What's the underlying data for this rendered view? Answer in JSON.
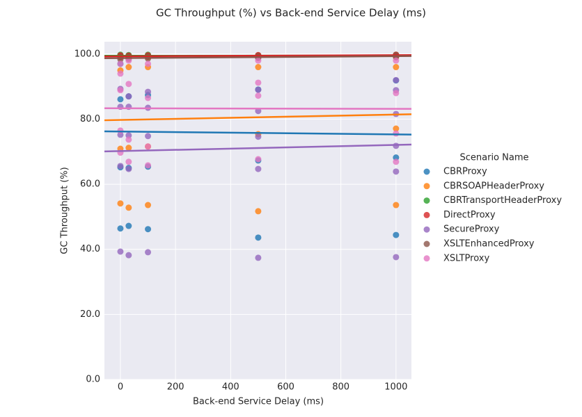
{
  "chart_data": {
    "type": "scatter",
    "title": "GC Throughput (%) vs Back-end Service Delay (ms)",
    "x_label": "Back-end Service Delay (ms)",
    "y_label": "GC Throughput (%)",
    "legend_title": "Scenario Name",
    "legend_position": "right",
    "grid": true,
    "regression": true,
    "xlim": [
      -58,
      1056
    ],
    "ylim": [
      0,
      103.8
    ],
    "xticks": [
      0,
      200,
      400,
      600,
      800,
      1000
    ],
    "yticks": [
      {
        "value": 0,
        "label": "0.0"
      },
      {
        "value": 20,
        "label": "20.0"
      },
      {
        "value": 40,
        "label": "40.0"
      },
      {
        "value": 60,
        "label": "60.0"
      },
      {
        "value": 80,
        "label": "80.0"
      },
      {
        "value": 100,
        "label": "100.0"
      }
    ],
    "series": [
      {
        "name": "CBRProxy",
        "color": "#1f77b4",
        "x": [
          0,
          0,
          0,
          0,
          0,
          30,
          30,
          30,
          30,
          100,
          100,
          100,
          100,
          500,
          500,
          500,
          500,
          1000,
          1000,
          1000,
          1000
        ],
        "values": [
          99.5,
          86.1,
          65.2,
          46.4,
          97,
          99.5,
          87.0,
          65.0,
          47.2,
          99.5,
          87.4,
          65.4,
          46.2,
          99.0,
          89.1,
          67.3,
          43.6,
          99.5,
          91.9,
          68.2,
          44.4
        ]
      },
      {
        "name": "CBRSOAPHeaderProxy",
        "color": "#ff7f0e",
        "x": [
          0,
          0,
          0,
          0,
          30,
          30,
          30,
          30,
          100,
          100,
          100,
          100,
          500,
          500,
          500,
          500,
          1000,
          1000,
          1000,
          1000
        ],
        "values": [
          99,
          95,
          70.9,
          54.1,
          99,
          96,
          71.2,
          52.8,
          99,
          96,
          71.6,
          53.6,
          99,
          96,
          75.4,
          51.7,
          99,
          96,
          77.1,
          53.6
        ]
      },
      {
        "name": "CBRTransportHeaderProxy",
        "color": "#2ca02c",
        "x": [
          0,
          0,
          30,
          30,
          100,
          100,
          500,
          500,
          1000,
          1000
        ],
        "values": [
          99.8,
          99.3,
          99.7,
          99.2,
          99.8,
          99.3,
          99.6,
          99.0,
          99.8,
          99.4
        ]
      },
      {
        "name": "DirectProxy",
        "color": "#d62728",
        "x": [
          0,
          0,
          30,
          30,
          100,
          100,
          500,
          500,
          1000,
          1000
        ],
        "values": [
          99.6,
          99.1,
          99.5,
          99.0,
          99.6,
          99.2,
          99.7,
          99.3,
          99.8,
          99.5
        ]
      },
      {
        "name": "SecureProxy",
        "color": "#9467bd",
        "x": [
          0,
          0,
          0,
          0,
          0,
          30,
          30,
          30,
          30,
          30,
          100,
          100,
          100,
          100,
          500,
          500,
          500,
          500,
          500,
          1000,
          1000,
          1000,
          1000,
          1000,
          1000
        ],
        "values": [
          89.3,
          83.8,
          75.2,
          65.6,
          39.3,
          87.0,
          83.8,
          75.0,
          64.7,
          38.2,
          88.4,
          83.5,
          74.8,
          39.1,
          89.0,
          82.5,
          74.6,
          64.7,
          37.4,
          92.0,
          88.9,
          81.6,
          71.8,
          63.9,
          37.6
        ]
      },
      {
        "name": "XSLTEnhancedProxy",
        "color": "#8c564b",
        "x": [
          0,
          0,
          30,
          30,
          100,
          100,
          500,
          500,
          1000,
          1000
        ],
        "values": [
          99.0,
          98.4,
          99.1,
          98.5,
          99.2,
          98.6,
          99.3,
          98.8,
          99.6,
          99.1
        ]
      },
      {
        "name": "XSLTProxy",
        "color": "#e377c2",
        "x": [
          0,
          0,
          0,
          0,
          0,
          30,
          30,
          30,
          30,
          100,
          100,
          100,
          100,
          500,
          500,
          500,
          500,
          1000,
          1000,
          1000,
          1000
        ],
        "values": [
          97,
          88.9,
          76.5,
          69.7,
          94,
          98,
          90.8,
          73.7,
          66.9,
          97,
          86.5,
          71.6,
          65.8,
          98,
          91.2,
          87.2,
          67.7,
          98,
          88.0,
          75.6,
          66.9
        ]
      }
    ]
  }
}
